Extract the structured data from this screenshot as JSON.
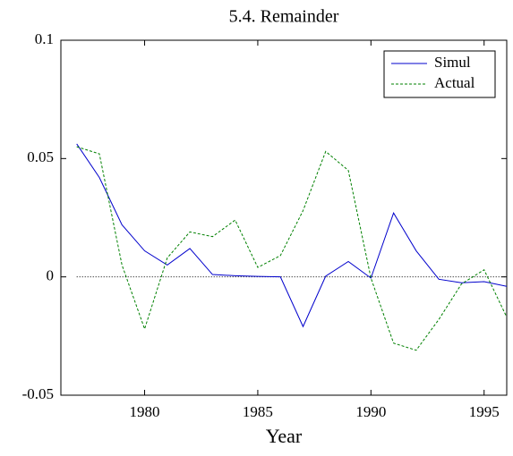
{
  "chart_data": {
    "type": "line",
    "title": "5.4. Remainder",
    "x_label": "Year",
    "x": [
      1977,
      1978,
      1979,
      1980,
      1981,
      1982,
      1983,
      1984,
      1985,
      1986,
      1987,
      1988,
      1989,
      1990,
      1991,
      1992,
      1993,
      1994,
      1995,
      1996
    ],
    "series": [
      {
        "name": "Simul",
        "color": "#0000cc",
        "dash": "solid",
        "values": [
          0.0562,
          0.042,
          0.022,
          0.011,
          0.005,
          0.012,
          0.001,
          0.0005,
          0.0002,
          0,
          -0.021,
          0.0003,
          0.0065,
          -0.0005,
          0.027,
          0.011,
          -0.001,
          -0.0025,
          -0.002,
          -0.004
        ]
      },
      {
        "name": "Actual",
        "color": "#008000",
        "dash": "dashed",
        "values": [
          0.055,
          0.052,
          0.005,
          -0.022,
          0.008,
          0.019,
          0.017,
          0.024,
          0.004,
          0.009,
          0.028,
          0.053,
          0.045,
          -0.0005,
          -0.028,
          -0.031,
          -0.018,
          -0.003,
          0.003,
          -0.017
        ]
      }
    ],
    "hline": 0,
    "xlim": [
      1976.3,
      1996
    ],
    "xticks": [
      1980,
      1985,
      1990,
      1995
    ],
    "ylim": [
      -0.05,
      0.1
    ],
    "yticks": [
      -0.05,
      0,
      0.05,
      0.1
    ],
    "legend": "top-right"
  }
}
